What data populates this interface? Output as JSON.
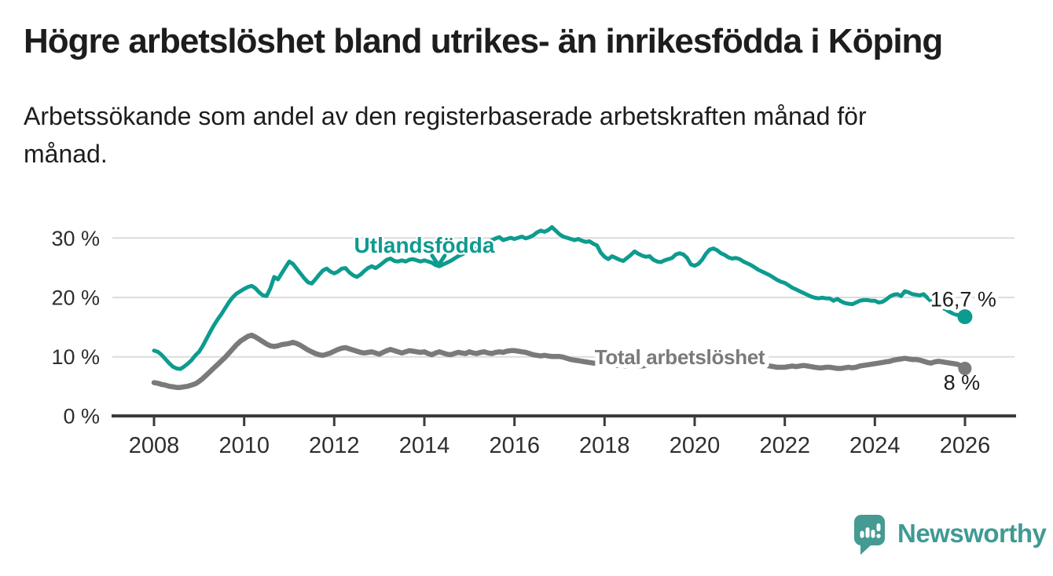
{
  "page": {
    "title": "Högre arbetslöshet bland utrikes- än inrikesfödda i Köping",
    "subtitle_line1": "Arbetssökande som andel av den registerbaserade arbetskraften månad för",
    "subtitle_line2": "månad.",
    "background_color": "#ffffff",
    "text_color": "#1d1d1d"
  },
  "branding": {
    "logo_text": "Newsworthy",
    "logo_color": "#3f9a93",
    "logo_icon": "bar-chart-speech-bubble-icon"
  },
  "chart_data": {
    "type": "line",
    "title": "Högre arbetslöshet bland utrikes- än inrikesfödda i Köping",
    "subtitle": "Arbetssökande som andel av den registerbaserade arbetskraften månad för månad.",
    "unit": "%",
    "frequency": "monthly",
    "x_start": {
      "year": 2008,
      "month": 1
    },
    "x_end": {
      "year": 2026,
      "month": 1
    },
    "xlim": [
      2008,
      2027.1
    ],
    "ylim": [
      0,
      33
    ],
    "grid": "horizontal",
    "axis_color": "#3b3b3b",
    "grid_color": "#dcdcdc",
    "x_ticks": [
      "2008",
      "2010",
      "2012",
      "2014",
      "2016",
      "2018",
      "2020",
      "2022",
      "2024",
      "2026"
    ],
    "y_ticks": [
      "30 %",
      "20 %",
      "10 %",
      "0 %"
    ],
    "y_tick_values": [
      30,
      20,
      10,
      0
    ],
    "series": [
      {
        "name": "Utlandsfödda",
        "color": "#0d9b8f",
        "end_label": "16,7 %",
        "end_value": 16.7,
        "values": [
          11.0,
          10.8,
          10.3,
          9.6,
          8.9,
          8.3,
          8.0,
          7.9,
          8.3,
          8.8,
          9.4,
          10.2,
          10.8,
          11.8,
          13.0,
          14.2,
          15.3,
          16.3,
          17.2,
          18.2,
          19.2,
          20.0,
          20.6,
          21.0,
          21.4,
          21.7,
          21.9,
          21.5,
          20.8,
          20.3,
          20.2,
          21.5,
          23.4,
          23.0,
          24.0,
          25.0,
          26.0,
          25.6,
          24.8,
          24.0,
          23.2,
          22.5,
          22.3,
          23.0,
          23.8,
          24.5,
          24.8,
          24.3,
          24.0,
          24.3,
          24.8,
          24.9,
          24.2,
          23.7,
          23.4,
          23.8,
          24.4,
          24.9,
          25.2,
          24.9,
          25.3,
          25.8,
          26.3,
          26.5,
          26.1,
          26.0,
          26.2,
          26.0,
          26.3,
          26.4,
          26.2,
          26.0,
          26.2,
          26.0,
          25.8,
          25.4,
          25.2,
          25.5,
          25.8,
          26.1,
          26.5,
          26.9,
          27.2,
          27.5,
          27.8,
          28.0,
          28.2,
          28.5,
          28.8,
          29.2,
          29.6,
          29.9,
          30.1,
          29.6,
          29.8,
          30.0,
          29.8,
          30.0,
          30.2,
          29.9,
          30.1,
          30.4,
          30.9,
          31.2,
          31.0,
          31.3,
          31.8,
          31.2,
          30.6,
          30.2,
          30.0,
          29.8,
          29.6,
          29.8,
          29.5,
          29.3,
          29.4,
          29.0,
          28.7,
          27.5,
          26.8,
          26.4,
          26.9,
          26.6,
          26.3,
          26.1,
          26.6,
          27.1,
          27.7,
          27.3,
          27.0,
          26.8,
          26.9,
          26.3,
          26.0,
          25.9,
          26.2,
          26.4,
          26.6,
          27.2,
          27.4,
          27.2,
          26.6,
          25.5,
          25.3,
          25.6,
          26.3,
          27.3,
          28.0,
          28.2,
          27.9,
          27.4,
          27.1,
          26.7,
          26.5,
          26.6,
          26.4,
          26.0,
          25.7,
          25.4,
          25.0,
          24.6,
          24.3,
          24.0,
          23.7,
          23.3,
          22.9,
          22.6,
          22.4,
          22.0,
          21.6,
          21.3,
          21.0,
          20.7,
          20.4,
          20.1,
          19.9,
          19.8,
          19.9,
          19.8,
          19.8,
          19.4,
          19.7,
          19.3,
          19.0,
          18.9,
          18.8,
          19.1,
          19.4,
          19.5,
          19.5,
          19.4,
          19.4,
          19.1,
          19.2,
          19.6,
          20.1,
          20.4,
          20.5,
          20.2,
          21.0,
          20.8,
          20.5,
          20.4,
          20.3,
          20.5,
          19.9,
          19.3,
          18.9,
          18.6,
          18.2,
          17.9,
          17.5,
          17.2,
          17.0,
          16.8,
          16.7
        ]
      },
      {
        "name": "Total arbetslöshet",
        "color": "#7a7a7a",
        "end_label": "8 %",
        "end_value": 8.0,
        "values": [
          5.6,
          5.5,
          5.3,
          5.2,
          5.0,
          4.9,
          4.8,
          4.8,
          4.9,
          5.0,
          5.2,
          5.4,
          5.8,
          6.3,
          6.9,
          7.5,
          8.1,
          8.7,
          9.3,
          9.9,
          10.6,
          11.3,
          12.0,
          12.6,
          13.0,
          13.4,
          13.6,
          13.3,
          12.9,
          12.5,
          12.1,
          11.8,
          11.7,
          11.8,
          12.0,
          12.1,
          12.2,
          12.4,
          12.2,
          11.9,
          11.5,
          11.1,
          10.8,
          10.5,
          10.3,
          10.2,
          10.4,
          10.6,
          10.9,
          11.2,
          11.4,
          11.5,
          11.3,
          11.1,
          10.9,
          10.7,
          10.6,
          10.7,
          10.8,
          10.6,
          10.4,
          10.7,
          11.0,
          11.2,
          11.0,
          10.8,
          10.6,
          10.8,
          11.0,
          10.9,
          10.8,
          10.7,
          10.8,
          10.5,
          10.3,
          10.6,
          10.8,
          10.6,
          10.4,
          10.3,
          10.5,
          10.7,
          10.6,
          10.5,
          10.8,
          10.6,
          10.5,
          10.7,
          10.8,
          10.6,
          10.5,
          10.7,
          10.8,
          10.7,
          10.9,
          11.0,
          11.0,
          10.9,
          10.8,
          10.7,
          10.5,
          10.3,
          10.2,
          10.1,
          10.2,
          10.1,
          10.0,
          10.0,
          10.0,
          9.9,
          9.7,
          9.5,
          9.4,
          9.3,
          9.2,
          9.1,
          9.0,
          8.9,
          8.9,
          8.8,
          8.8,
          8.7,
          8.6,
          8.5,
          8.5,
          8.4,
          8.4,
          8.5,
          8.5,
          8.4,
          8.4,
          8.5,
          8.6,
          8.6,
          8.5,
          8.5,
          8.6,
          8.7,
          8.8,
          8.9,
          9.0,
          9.1,
          9.2,
          9.3,
          9.5,
          9.9,
          10.4,
          10.8,
          11.0,
          10.9,
          10.7,
          10.4,
          10.1,
          9.9,
          9.7,
          9.6,
          9.5,
          9.4,
          9.2,
          9.0,
          8.9,
          8.7,
          8.6,
          8.5,
          8.4,
          8.3,
          8.2,
          8.2,
          8.2,
          8.3,
          8.4,
          8.3,
          8.4,
          8.5,
          8.4,
          8.3,
          8.2,
          8.1,
          8.1,
          8.2,
          8.2,
          8.1,
          8.0,
          8.0,
          8.1,
          8.2,
          8.1,
          8.2,
          8.4,
          8.5,
          8.6,
          8.7,
          8.8,
          8.9,
          9.0,
          9.1,
          9.2,
          9.4,
          9.5,
          9.6,
          9.7,
          9.6,
          9.5,
          9.5,
          9.4,
          9.2,
          9.0,
          8.9,
          9.1,
          9.2,
          9.1,
          9.0,
          8.9,
          8.8,
          8.7,
          8.4,
          8.0
        ]
      }
    ],
    "annotations": [
      {
        "text": "Utlandsfödda",
        "year": 2014.0,
        "value": 28.7,
        "color": "#0d9b8f",
        "arrow": "down"
      },
      {
        "text": "Total arbetslöshet",
        "year": 2019.67,
        "value": 9.9,
        "color": "#7a7a7a"
      }
    ],
    "legend_position": "inline-annotations"
  }
}
